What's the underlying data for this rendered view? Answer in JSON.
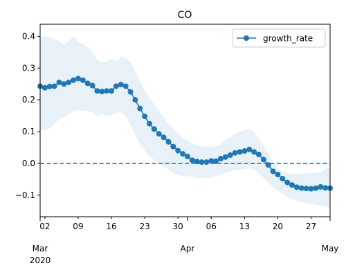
{
  "chart_data": {
    "type": "line",
    "title": "CO",
    "xlabel": "",
    "ylabel": "",
    "x_start_date": "2020-03-01",
    "xlim": [
      "2020-03-01",
      "2020-05-01"
    ],
    "ylim": [
      -0.168,
      0.438
    ],
    "y_ticks": [
      -0.1,
      0.0,
      0.1,
      0.2,
      0.3,
      0.4
    ],
    "y_tick_labels": [
      "−0.1",
      "0.0",
      "0.1",
      "0.2",
      "0.3",
      "0.4"
    ],
    "x_minor_ticks": [
      {
        "date": "2020-03-02",
        "label": "02"
      },
      {
        "date": "2020-03-09",
        "label": "09"
      },
      {
        "date": "2020-03-16",
        "label": "16"
      },
      {
        "date": "2020-03-23",
        "label": "23"
      },
      {
        "date": "2020-03-30",
        "label": "30"
      },
      {
        "date": "2020-04-06",
        "label": "06"
      },
      {
        "date": "2020-04-13",
        "label": "13"
      },
      {
        "date": "2020-04-20",
        "label": "20"
      },
      {
        "date": "2020-04-27",
        "label": "27"
      }
    ],
    "x_major_ticks": [
      {
        "date": "2020-03-01",
        "label": "Mar",
        "sublabel": "2020"
      },
      {
        "date": "2020-04-01",
        "label": "Apr",
        "sublabel": ""
      },
      {
        "date": "2020-05-01",
        "label": "May",
        "sublabel": ""
      }
    ],
    "grid": false,
    "legend_position": "top-right",
    "reference_line": {
      "y": 0.0,
      "style": "dashed",
      "color": "#1f77b4"
    },
    "series": [
      {
        "name": "growth_rate",
        "color": "#1f77b4",
        "band_color": "#1f77b4",
        "band_opacity": 0.1,
        "x": [
          "2020-03-01",
          "2020-03-02",
          "2020-03-03",
          "2020-03-04",
          "2020-03-05",
          "2020-03-06",
          "2020-03-07",
          "2020-03-08",
          "2020-03-09",
          "2020-03-10",
          "2020-03-11",
          "2020-03-12",
          "2020-03-13",
          "2020-03-14",
          "2020-03-15",
          "2020-03-16",
          "2020-03-17",
          "2020-03-18",
          "2020-03-19",
          "2020-03-20",
          "2020-03-21",
          "2020-03-22",
          "2020-03-23",
          "2020-03-24",
          "2020-03-25",
          "2020-03-26",
          "2020-03-27",
          "2020-03-28",
          "2020-03-29",
          "2020-03-30",
          "2020-03-31",
          "2020-04-01",
          "2020-04-02",
          "2020-04-03",
          "2020-04-04",
          "2020-04-05",
          "2020-04-06",
          "2020-04-07",
          "2020-04-08",
          "2020-04-09",
          "2020-04-10",
          "2020-04-11",
          "2020-04-12",
          "2020-04-13",
          "2020-04-14",
          "2020-04-15",
          "2020-04-16",
          "2020-04-17",
          "2020-04-18",
          "2020-04-19",
          "2020-04-20",
          "2020-04-21",
          "2020-04-22",
          "2020-04-23",
          "2020-04-24",
          "2020-04-25",
          "2020-04-26",
          "2020-04-27",
          "2020-04-28",
          "2020-04-29",
          "2020-04-30",
          "2020-05-01"
        ],
        "values": [
          0.243,
          0.238,
          0.242,
          0.243,
          0.255,
          0.25,
          0.255,
          0.262,
          0.267,
          0.262,
          0.252,
          0.245,
          0.228,
          0.226,
          0.228,
          0.228,
          0.243,
          0.248,
          0.243,
          0.225,
          0.2,
          0.173,
          0.148,
          0.125,
          0.108,
          0.093,
          0.082,
          0.068,
          0.053,
          0.04,
          0.03,
          0.022,
          0.01,
          0.006,
          0.004,
          0.004,
          0.008,
          0.007,
          0.015,
          0.02,
          0.026,
          0.033,
          0.036,
          0.039,
          0.044,
          0.036,
          0.028,
          0.012,
          -0.005,
          -0.025,
          -0.035,
          -0.048,
          -0.06,
          -0.068,
          -0.075,
          -0.078,
          -0.079,
          -0.08,
          -0.078,
          -0.074,
          -0.077,
          -0.078
        ],
        "lower": [
          0.105,
          0.105,
          0.11,
          0.125,
          0.14,
          0.145,
          0.155,
          0.165,
          0.168,
          0.165,
          0.165,
          0.16,
          0.15,
          0.155,
          0.15,
          0.152,
          0.16,
          0.162,
          0.15,
          0.12,
          0.09,
          0.06,
          0.04,
          0.025,
          0.01,
          0.0,
          -0.01,
          -0.02,
          -0.03,
          -0.038,
          -0.04,
          -0.04,
          -0.042,
          -0.045,
          -0.047,
          -0.046,
          -0.044,
          -0.04,
          -0.035,
          -0.03,
          -0.025,
          -0.022,
          -0.02,
          -0.018,
          -0.015,
          -0.02,
          -0.03,
          -0.045,
          -0.06,
          -0.075,
          -0.085,
          -0.095,
          -0.105,
          -0.112,
          -0.118,
          -0.122,
          -0.125,
          -0.128,
          -0.13,
          -0.132,
          -0.135,
          -0.14
        ],
        "upper": [
          0.395,
          0.4,
          0.398,
          0.39,
          0.385,
          0.375,
          0.385,
          0.4,
          0.385,
          0.375,
          0.365,
          0.35,
          0.325,
          0.318,
          0.32,
          0.33,
          0.32,
          0.335,
          0.33,
          0.32,
          0.29,
          0.26,
          0.23,
          0.205,
          0.185,
          0.165,
          0.145,
          0.125,
          0.11,
          0.095,
          0.082,
          0.072,
          0.063,
          0.058,
          0.055,
          0.053,
          0.053,
          0.055,
          0.062,
          0.072,
          0.083,
          0.093,
          0.1,
          0.105,
          0.108,
          0.098,
          0.078,
          0.055,
          0.03,
          0.005,
          -0.015,
          -0.025,
          -0.03,
          -0.032,
          -0.032,
          -0.032,
          -0.03,
          -0.03,
          -0.03,
          -0.026,
          -0.018,
          -0.012
        ]
      }
    ]
  }
}
